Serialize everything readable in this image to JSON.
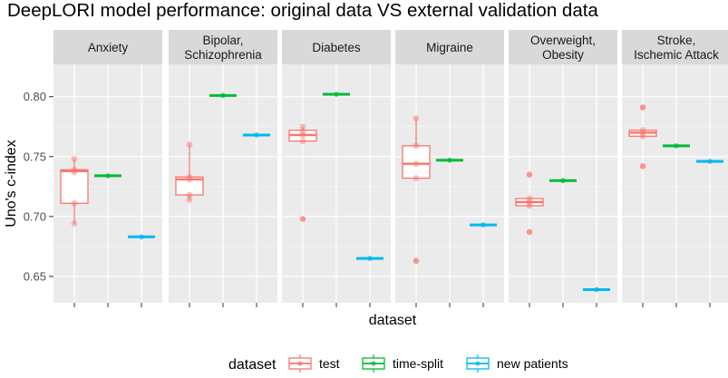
{
  "chart_data": {
    "type": "boxplot",
    "title": "DeepLORI model performance: original data VS external validation data",
    "xlabel": "dataset",
    "ylabel": "Uno's c-index",
    "ylim": [
      0.628,
      0.827
    ],
    "yticks": [
      0.65,
      0.7,
      0.75,
      0.8
    ],
    "ytick_labels": [
      "0.65",
      "0.70",
      "0.75",
      "0.80"
    ],
    "grid": true,
    "legend": {
      "title": "dataset",
      "position": "bottom",
      "entries": [
        "test",
        "time-split",
        "new patients"
      ]
    },
    "colors": {
      "test": "#F8766D",
      "time-split": "#00BA38",
      "new patients": "#00B7F0"
    },
    "categories": [
      "test",
      "time-split",
      "new patients"
    ],
    "facets": [
      {
        "name": "Anxiety",
        "lines": [
          "Anxiety"
        ],
        "test": {
          "q1": 0.711,
          "median": 0.738,
          "q3": 0.739,
          "whisker_low": 0.694,
          "whisker_high": 0.748,
          "points": [
            0.748,
            0.739,
            0.737,
            0.711,
            0.694
          ]
        },
        "time_split": 0.734,
        "new_patients": 0.683
      },
      {
        "name": "Bipolar, Schizophrenia",
        "lines": [
          "Bipolar,",
          "Schizophrenia"
        ],
        "test": {
          "q1": 0.718,
          "median": 0.731,
          "q3": 0.733,
          "whisker_low": 0.714,
          "whisker_high": 0.76,
          "points": [
            0.76,
            0.733,
            0.731,
            0.718,
            0.714
          ]
        },
        "time_split": 0.801,
        "new_patients": 0.768
      },
      {
        "name": "Diabetes",
        "lines": [
          "Diabetes"
        ],
        "test": {
          "q1": 0.763,
          "median": 0.768,
          "q3": 0.772,
          "whisker_low": 0.763,
          "whisker_high": 0.775,
          "outliers": [
            0.698
          ],
          "points": [
            0.775,
            0.771,
            0.768,
            0.763,
            0.698
          ]
        },
        "time_split": 0.802,
        "new_patients": 0.665
      },
      {
        "name": "Migraine",
        "lines": [
          "Migraine"
        ],
        "test": {
          "q1": 0.732,
          "median": 0.744,
          "q3": 0.759,
          "whisker_low": 0.732,
          "whisker_high": 0.782,
          "outliers": [
            0.663
          ],
          "points": [
            0.782,
            0.759,
            0.744,
            0.732,
            0.663
          ]
        },
        "time_split": 0.747,
        "new_patients": 0.693
      },
      {
        "name": "Overweight, Obesity",
        "lines": [
          "Overweight,",
          "Obesity"
        ],
        "test": {
          "q1": 0.709,
          "median": 0.712,
          "q3": 0.715,
          "whisker_low": 0.708,
          "whisker_high": 0.715,
          "outliers": [
            0.735,
            0.687
          ],
          "points": [
            0.735,
            0.715,
            0.712,
            0.709,
            0.687
          ]
        },
        "time_split": 0.73,
        "new_patients": 0.639
      },
      {
        "name": "Stroke, Ischemic Attack",
        "lines": [
          "Stroke,",
          "Ischemic Attack"
        ],
        "test": {
          "q1": 0.767,
          "median": 0.77,
          "q3": 0.772,
          "whisker_low": 0.766,
          "whisker_high": 0.772,
          "outliers": [
            0.791,
            0.742
          ],
          "points": [
            0.791,
            0.772,
            0.77,
            0.767,
            0.742
          ]
        },
        "time_split": 0.759,
        "new_patients": 0.746
      }
    ]
  }
}
